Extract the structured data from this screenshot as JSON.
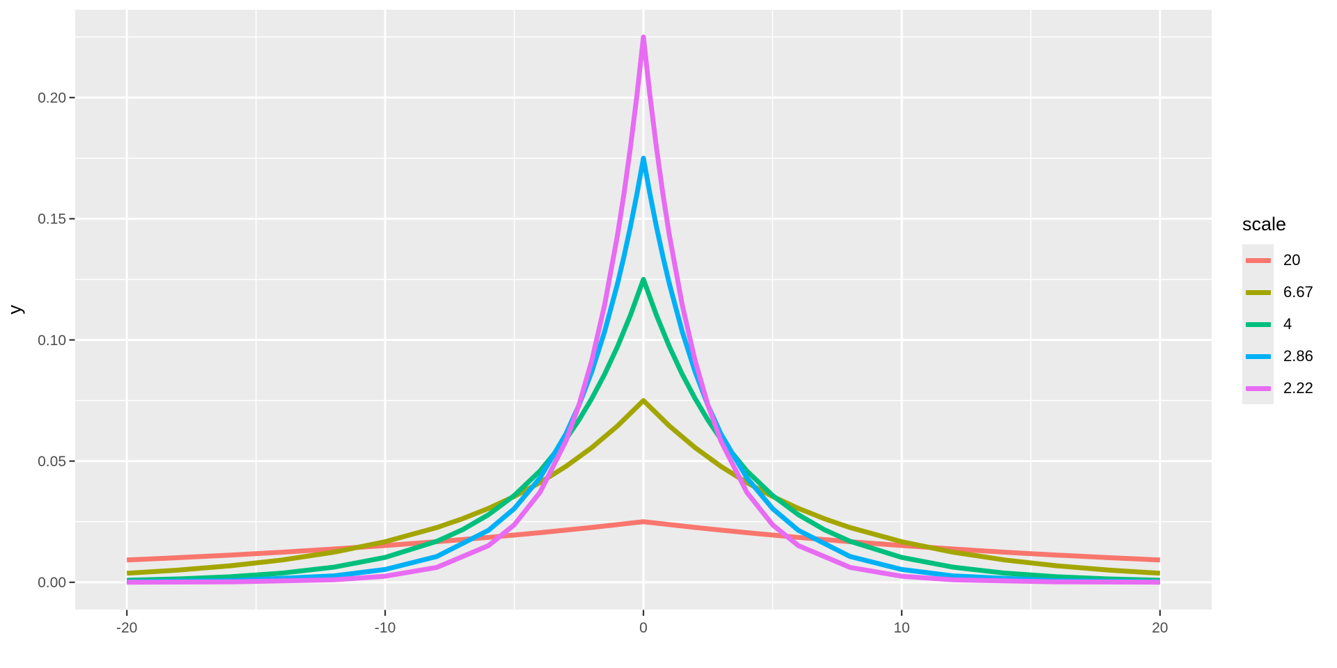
{
  "figure": {
    "background": "#FFFFFF",
    "panel_background": "#EBEBEB",
    "grid_color": "#FFFFFF",
    "tick_color": "#333333",
    "tick_label_color": "#4D4D4D",
    "axis_title_color": "#000000"
  },
  "chart_data": {
    "type": "line",
    "title": "",
    "xlabel": "",
    "ylabel": "y",
    "xlim": [
      -22,
      22
    ],
    "ylim": [
      -0.01125,
      0.23625
    ],
    "x_ticks": [
      -20,
      -10,
      0,
      10,
      20
    ],
    "x_tick_labels": [
      "-20",
      "-10",
      "0",
      "10",
      "20"
    ],
    "y_ticks": [
      0,
      0.05,
      0.1,
      0.15,
      0.2
    ],
    "y_tick_labels": [
      "0.00",
      "0.05",
      "0.10",
      "0.15",
      "0.20"
    ],
    "x_minor": [
      -15,
      -5,
      5,
      15
    ],
    "y_minor": [
      0.025,
      0.075,
      0.125,
      0.175,
      0.225
    ],
    "grid": "major and minor white gridlines on grey panel",
    "legend": {
      "title": "scale",
      "position": "right",
      "entries": [
        {
          "label": "20",
          "color": "#F8766D"
        },
        {
          "label": "6.67",
          "color": "#A3A500"
        },
        {
          "label": "4",
          "color": "#00BF7D"
        },
        {
          "label": "2.86",
          "color": "#00B0F6"
        },
        {
          "label": "2.22",
          "color": "#E76BF3"
        }
      ]
    },
    "series": [
      {
        "name": "20",
        "color": "#F8766D",
        "distribution": "Laplace density",
        "scale": 20,
        "peak_y": 0.025,
        "x": [
          -20,
          -18,
          -16,
          -14,
          -12,
          -10,
          -8,
          -6,
          -4,
          -2,
          0,
          2,
          4,
          6,
          8,
          10,
          12,
          14,
          16,
          18,
          20
        ],
        "y": [
          0.009197,
          0.010164,
          0.011233,
          0.012415,
          0.01372,
          0.015163,
          0.016758,
          0.01852,
          0.020468,
          0.022621,
          0.025,
          0.022621,
          0.020468,
          0.01852,
          0.016758,
          0.015163,
          0.01372,
          0.012415,
          0.011233,
          0.010164,
          0.009197
        ]
      },
      {
        "name": "6.67",
        "color": "#A3A500",
        "distribution": "Laplace density",
        "scale": 6.67,
        "peak_y": 0.075,
        "x": [
          -20,
          -18,
          -16,
          -14,
          -12,
          -10,
          -8,
          -7,
          -6,
          -5,
          -4,
          -3,
          -2,
          -1,
          0,
          1,
          2,
          3,
          4,
          5,
          6,
          7,
          8,
          10,
          12,
          14,
          16,
          18,
          20
        ],
        "y": [
          0.003734,
          0.00504,
          0.006804,
          0.009184,
          0.012397,
          0.016735,
          0.02259,
          0.026245,
          0.030493,
          0.035427,
          0.041161,
          0.047822,
          0.055561,
          0.064553,
          0.075,
          0.064553,
          0.055561,
          0.047822,
          0.041161,
          0.035427,
          0.030493,
          0.026245,
          0.02259,
          0.016735,
          0.012397,
          0.009184,
          0.006804,
          0.00504,
          0.003734
        ]
      },
      {
        "name": "4",
        "color": "#00BF7D",
        "distribution": "Laplace density",
        "scale": 4,
        "peak_y": 0.125,
        "x": [
          -20,
          -18,
          -16,
          -14,
          -12,
          -10,
          -8,
          -7,
          -6,
          -5,
          -4,
          -3,
          -2.5,
          -2,
          -1.5,
          -1,
          -0.5,
          0,
          0.5,
          1,
          1.5,
          2,
          2.5,
          3,
          4,
          5,
          6,
          7,
          8,
          10,
          12,
          14,
          16,
          18,
          20
        ],
        "y": [
          0.000842,
          0.001389,
          0.002289,
          0.003775,
          0.006223,
          0.010261,
          0.016917,
          0.021722,
          0.027891,
          0.035813,
          0.045985,
          0.059046,
          0.066908,
          0.075816,
          0.085911,
          0.09735,
          0.110312,
          0.125,
          0.110312,
          0.09735,
          0.085911,
          0.075816,
          0.066908,
          0.059046,
          0.045985,
          0.035813,
          0.027891,
          0.021722,
          0.016917,
          0.010261,
          0.006223,
          0.003775,
          0.002289,
          0.001389,
          0.000842
        ]
      },
      {
        "name": "2.86",
        "color": "#00B0F6",
        "distribution": "Laplace density",
        "scale": 2.86,
        "peak_y": 0.175,
        "x": [
          -20,
          -16,
          -12,
          -10,
          -8,
          -6,
          -5,
          -4,
          -3,
          -2.5,
          -2,
          -1.5,
          -1,
          -0.75,
          -0.5,
          -0.25,
          0,
          0.25,
          0.5,
          0.75,
          1,
          1.5,
          2,
          2.5,
          3,
          4,
          5,
          6,
          8,
          10,
          12,
          16,
          20
        ],
        "y": [
          0.00016,
          0.000647,
          0.002624,
          0.005285,
          0.010642,
          0.02143,
          0.03041,
          0.043154,
          0.061239,
          0.072951,
          0.086902,
          0.103522,
          0.12332,
          0.134597,
          0.146905,
          0.160338,
          0.175,
          0.160338,
          0.146905,
          0.134597,
          0.12332,
          0.103522,
          0.086902,
          0.072951,
          0.061239,
          0.043154,
          0.03041,
          0.02143,
          0.010642,
          0.005285,
          0.002624,
          0.000647,
          0.00016
        ]
      },
      {
        "name": "2.22",
        "color": "#E76BF3",
        "distribution": "Laplace density",
        "scale": 2.22,
        "peak_y": 0.225,
        "x": [
          -20,
          -16,
          -12,
          -10,
          -8,
          -6,
          -5,
          -4,
          -3,
          -2.5,
          -2,
          -1.5,
          -1,
          -0.75,
          -0.5,
          -0.25,
          0,
          0.25,
          0.5,
          0.75,
          1,
          1.5,
          2,
          2.5,
          3,
          4,
          5,
          6,
          8,
          10,
          12,
          16,
          20
        ],
        "y": [
          2.8e-05,
          0.000168,
          0.001016,
          0.0025,
          0.006148,
          0.015121,
          0.023715,
          0.037192,
          0.058329,
          0.073047,
          0.091478,
          0.11456,
          0.143466,
          0.160546,
          0.179666,
          0.20106,
          0.225,
          0.20106,
          0.179666,
          0.160546,
          0.143466,
          0.11456,
          0.091478,
          0.073047,
          0.058329,
          0.037192,
          0.023715,
          0.015121,
          0.006148,
          0.0025,
          0.001016,
          0.000168,
          2.8e-05
        ]
      }
    ]
  }
}
